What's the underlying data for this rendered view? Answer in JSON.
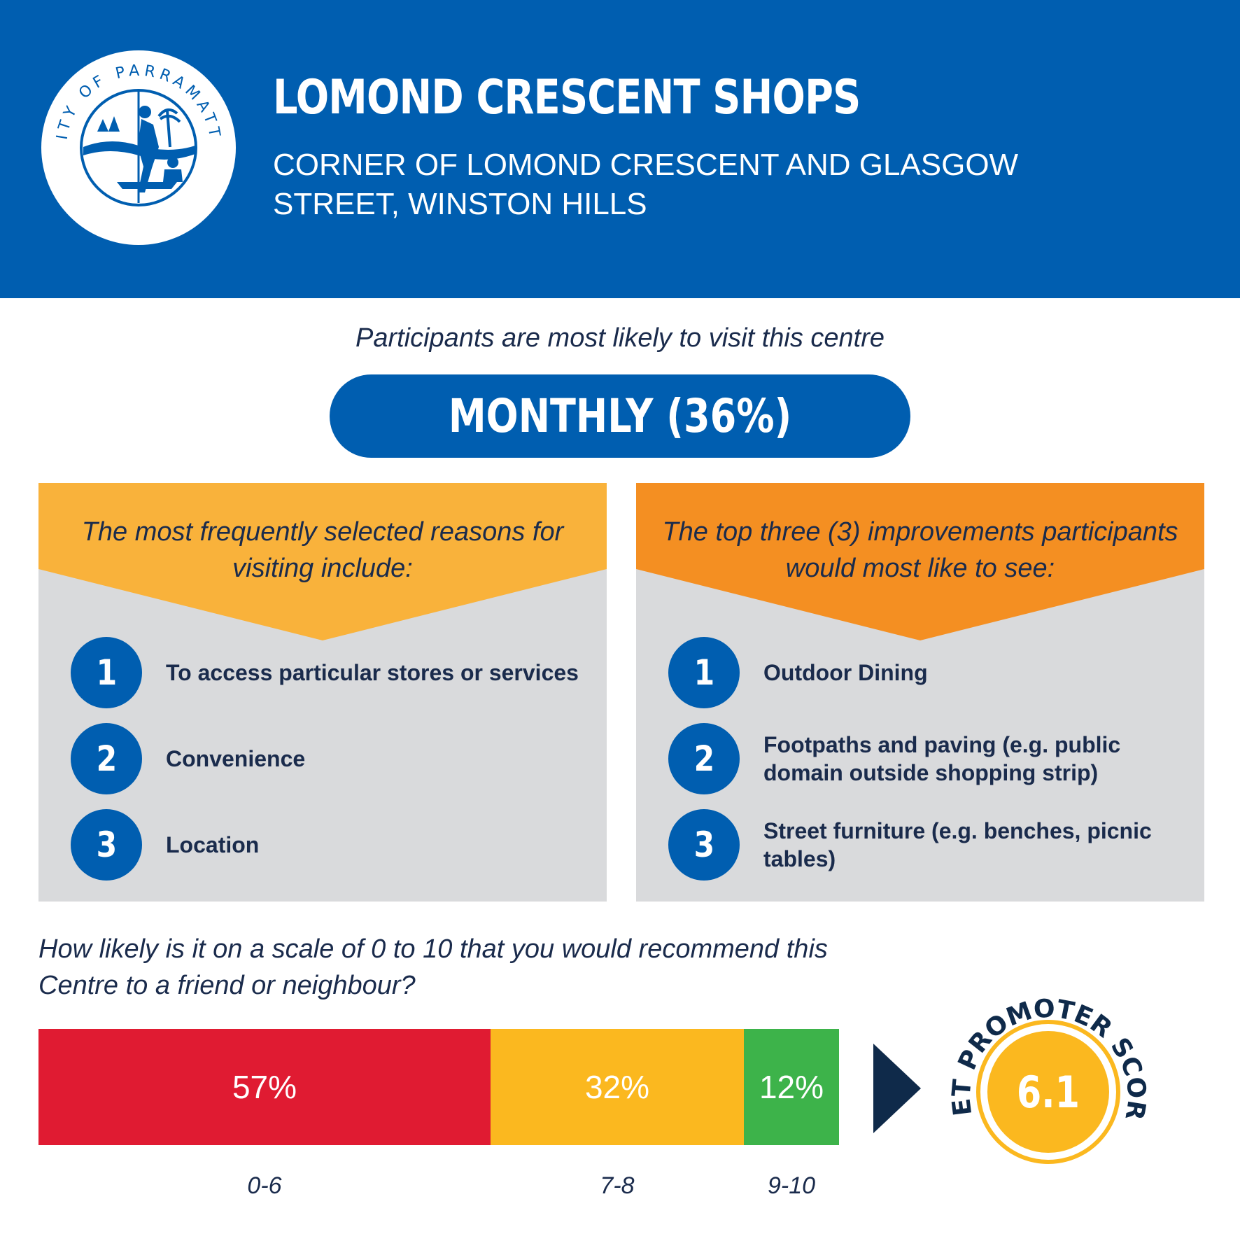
{
  "header": {
    "logo_text": "CITY OF PARRAMATTA",
    "title": "LOMOND CRESCENT SHOPS",
    "address": "CORNER OF LOMOND CRESCENT AND GLASGOW STREET, WINSTON HILLS"
  },
  "frequency": {
    "intro": "Participants are most likely to visit this centre",
    "value": "MONTHLY (36%)"
  },
  "reasons": {
    "heading": "The most frequently selected reasons for visiting include:",
    "color": "#f9b23b",
    "items": [
      {
        "num": "1",
        "text": "To access particular stores or services"
      },
      {
        "num": "2",
        "text": "Convenience"
      },
      {
        "num": "3",
        "text": "Location"
      }
    ]
  },
  "improvements": {
    "heading": "The top three (3) improvements participants would most like to see:",
    "color": "#f48f22",
    "items": [
      {
        "num": "1",
        "text": "Outdoor Dining"
      },
      {
        "num": "2",
        "text": "Footpaths and paving (e.g. public domain outside shopping strip)"
      },
      {
        "num": "3",
        "text": "Street furniture (e.g. benches, picnic tables)"
      }
    ]
  },
  "recommend": {
    "question": "How likely is it on a scale of 0 to 10 that you would recommend this Centre to a friend or neighbour?",
    "segments": [
      {
        "label": "57%",
        "range": "0-6",
        "value": 57,
        "color": "#e01b32"
      },
      {
        "label": "32%",
        "range": "7-8",
        "value": 32,
        "color": "#fbb81f"
      },
      {
        "label": "12%",
        "range": "9-10",
        "value": 12,
        "color": "#3db34a"
      }
    ]
  },
  "nps": {
    "label": "NET PROMOTER SCORE",
    "value": "6.1",
    "color": "#fbb81f"
  }
}
